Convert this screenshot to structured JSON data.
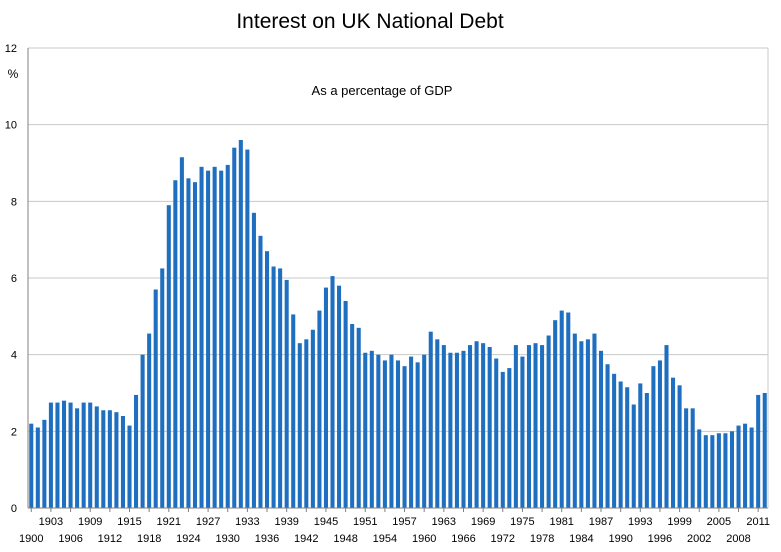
{
  "chart_data": {
    "type": "bar",
    "title": "Interest on UK National Debt",
    "subtitle": "As a percentage of GDP",
    "ylabel": "%",
    "ylim": [
      0,
      12
    ],
    "yticks": [
      0,
      2,
      4,
      6,
      8,
      10,
      12
    ],
    "grid": true,
    "bar_color": "#1f6fc0",
    "x_start": 1900,
    "x_end": 2012,
    "xtick_labels_lower": [
      "1900",
      "1906",
      "1912",
      "1918",
      "1924",
      "1930",
      "1936",
      "1942",
      "1948",
      "1954",
      "1960",
      "1966",
      "1972",
      "1978",
      "1984",
      "1990",
      "1996",
      "2002",
      "2008"
    ],
    "xtick_labels_upper": [
      "1903",
      "1909",
      "1915",
      "1921",
      "1927",
      "1933",
      "1939",
      "1945",
      "1951",
      "1957",
      "1963",
      "1969",
      "1975",
      "1981",
      "1987",
      "1993",
      "1999",
      "2005",
      "2011"
    ],
    "values": [
      2.2,
      2.1,
      2.3,
      2.75,
      2.75,
      2.8,
      2.75,
      2.6,
      2.75,
      2.75,
      2.65,
      2.55,
      2.55,
      2.5,
      2.4,
      2.15,
      2.95,
      4.0,
      4.55,
      5.7,
      6.25,
      7.9,
      8.55,
      9.15,
      8.6,
      8.5,
      8.9,
      8.8,
      8.9,
      8.8,
      8.95,
      9.4,
      9.6,
      9.35,
      7.7,
      7.1,
      6.7,
      6.3,
      6.25,
      5.95,
      5.05,
      4.3,
      4.4,
      4.65,
      5.15,
      5.75,
      6.05,
      5.8,
      5.4,
      4.8,
      4.7,
      4.05,
      4.1,
      4.0,
      3.85,
      4.0,
      3.85,
      3.7,
      3.95,
      3.8,
      4.0,
      4.6,
      4.4,
      4.25,
      4.05,
      4.05,
      4.1,
      4.25,
      4.35,
      4.3,
      4.2,
      3.9,
      3.55,
      3.65,
      4.25,
      3.95,
      4.25,
      4.3,
      4.25,
      4.5,
      4.9,
      5.15,
      5.1,
      4.55,
      4.35,
      4.4,
      4.55,
      4.1,
      3.75,
      3.5,
      3.3,
      3.15,
      2.7,
      3.25,
      3.0,
      3.7,
      3.85,
      4.25,
      3.4,
      3.2,
      2.6,
      2.6,
      2.05,
      1.9,
      1.9,
      1.95,
      1.95,
      2.0,
      2.15,
      2.2,
      2.1,
      2.95,
      3.0
    ]
  }
}
